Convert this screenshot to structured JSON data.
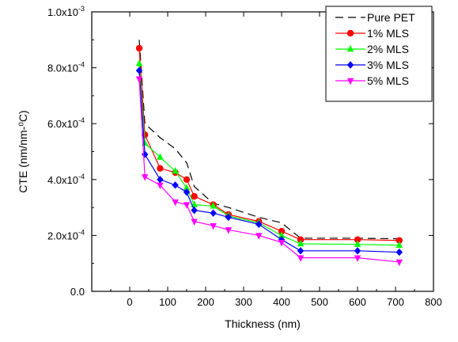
{
  "chart_data": {
    "type": "line",
    "title": "",
    "xlabel": "Thickness (nm)",
    "ylabel": "CTE (nm/nm-⁰C)",
    "xlim": [
      -100,
      800
    ],
    "ylim": [
      0.0,
      0.001
    ],
    "x_ticks": [
      0,
      100,
      200,
      300,
      400,
      500,
      600,
      700,
      800
    ],
    "x_tick_labels": [
      "0",
      "100",
      "200",
      "300",
      "400",
      "500",
      "600",
      "700",
      "800"
    ],
    "y_ticks": [
      0.0,
      0.0002,
      0.0004,
      0.0006,
      0.0008,
      0.001
    ],
    "y_tick_labels": [
      {
        "mantissa": "0.0",
        "exponent": ""
      },
      {
        "mantissa": "2.0x10",
        "exponent": "-4"
      },
      {
        "mantissa": "4.0x10",
        "exponent": "-4"
      },
      {
        "mantissa": "6.0x10",
        "exponent": "-4"
      },
      {
        "mantissa": "8.0x10",
        "exponent": "-4"
      },
      {
        "mantissa": "1.0x10",
        "exponent": "-3"
      }
    ],
    "grid": false,
    "legend_position": "top-right",
    "series": [
      {
        "name": "Pure PET",
        "color": "#000000",
        "dash": "dashed",
        "marker": "none",
        "x": [
          25,
          40,
          80,
          120,
          150,
          170,
          220,
          260,
          340,
          400,
          450,
          600,
          710
        ],
        "y": [
          0.0009,
          0.0006,
          0.00055,
          0.00051,
          0.00046,
          0.000375,
          0.000315,
          0.0003,
          0.000265,
          0.000245,
          0.00019,
          0.00019,
          0.000188
        ]
      },
      {
        "name": "1% MLS",
        "color": "#ff0000",
        "dash": "solid",
        "marker": "circle",
        "x": [
          25,
          40,
          80,
          120,
          150,
          170,
          220,
          260,
          340,
          400,
          450,
          600,
          710
        ],
        "y": [
          0.00087,
          0.00056,
          0.00044,
          0.000425,
          0.0004,
          0.00034,
          0.00031,
          0.000275,
          0.00025,
          0.000215,
          0.000185,
          0.000185,
          0.000182
        ]
      },
      {
        "name": "2% MLS",
        "color": "#00ff00",
        "dash": "solid",
        "marker": "triangle-up",
        "x": [
          25,
          40,
          80,
          120,
          150,
          170,
          220,
          260,
          340,
          400,
          450,
          600,
          710
        ],
        "y": [
          0.000815,
          0.00053,
          0.00048,
          0.00043,
          0.00037,
          0.00031,
          0.000305,
          0.00027,
          0.000245,
          0.0002,
          0.00017,
          0.000168,
          0.000165
        ]
      },
      {
        "name": "3% MLS",
        "color": "#0000ff",
        "dash": "solid",
        "marker": "diamond",
        "x": [
          25,
          40,
          80,
          120,
          150,
          170,
          220,
          260,
          340,
          400,
          450,
          600,
          710
        ],
        "y": [
          0.00079,
          0.00049,
          0.0004,
          0.00038,
          0.000355,
          0.00029,
          0.00028,
          0.000265,
          0.00024,
          0.000185,
          0.000145,
          0.000145,
          0.00014
        ]
      },
      {
        "name": "5% MLS",
        "color": "#ff00ff",
        "dash": "solid",
        "marker": "triangle-down",
        "x": [
          25,
          40,
          80,
          120,
          150,
          170,
          220,
          260,
          340,
          400,
          450,
          600,
          710
        ],
        "y": [
          0.00076,
          0.00041,
          0.00038,
          0.00032,
          0.00031,
          0.00025,
          0.000235,
          0.00022,
          0.0002,
          0.000175,
          0.00012,
          0.00012,
          0.000105
        ]
      }
    ]
  }
}
